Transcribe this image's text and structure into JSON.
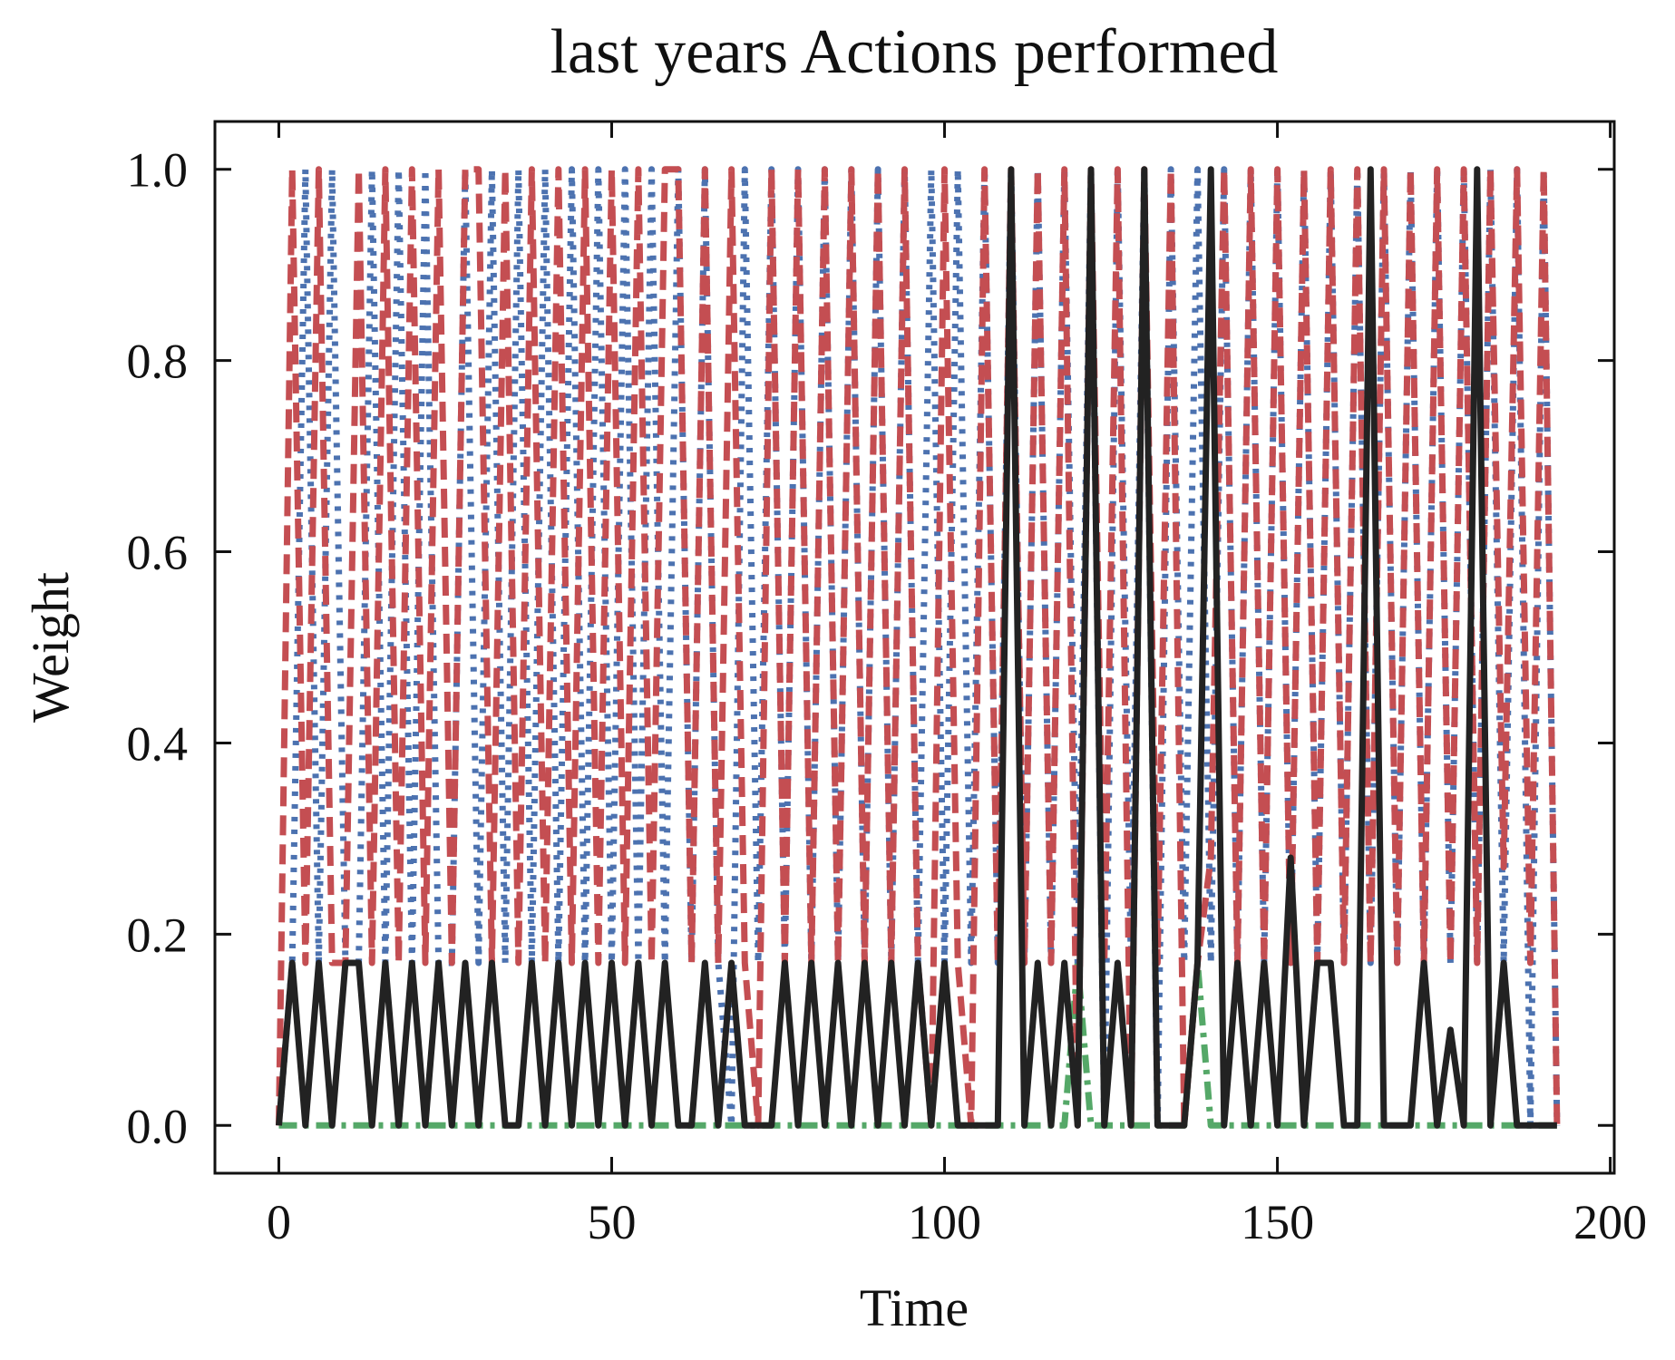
{
  "chart_data": {
    "type": "line",
    "title": "last years Actions performed",
    "xlabel": "Time",
    "ylabel": "Weight",
    "x": [
      0,
      2,
      4,
      6,
      8,
      10,
      12,
      14,
      16,
      18,
      20,
      22,
      24,
      26,
      28,
      30,
      32,
      34,
      36,
      38,
      40,
      42,
      44,
      46,
      48,
      50,
      52,
      54,
      56,
      58,
      60,
      62,
      64,
      66,
      68,
      70,
      72,
      74,
      76,
      78,
      80,
      82,
      84,
      86,
      88,
      90,
      92,
      94,
      96,
      98,
      100,
      102,
      104,
      106,
      108,
      110,
      112,
      114,
      116,
      118,
      120,
      122,
      124,
      126,
      128,
      130,
      132,
      134,
      136,
      138,
      140,
      142,
      144,
      146,
      148,
      150,
      152,
      154,
      156,
      158,
      160,
      162,
      164,
      166,
      168,
      170,
      172,
      174,
      176,
      178,
      180,
      182,
      184,
      186,
      188,
      190,
      192
    ],
    "series": [
      {
        "color": "#4c72b0",
        "dash": "dotted",
        "values": [
          0,
          0.17,
          1,
          0.17,
          1,
          0.17,
          0.17,
          1,
          0.17,
          1,
          0.17,
          1,
          0.17,
          0.17,
          1,
          0.17,
          1,
          0.17,
          1,
          0.17,
          1,
          0.17,
          1,
          0.17,
          1,
          0.17,
          1,
          0.17,
          1,
          0.17,
          1,
          0.17,
          1,
          0.17,
          0,
          1,
          0.17,
          1,
          0.17,
          1,
          0.17,
          1,
          0.17,
          1,
          0.17,
          1,
          0.17,
          1,
          0.17,
          1,
          0.17,
          1,
          0.17,
          1,
          0.17,
          1,
          0.17,
          1,
          0.17,
          1,
          0.17,
          1,
          0,
          1,
          0.17,
          1,
          0,
          1,
          0.17,
          1,
          0.17,
          1,
          0.17,
          1,
          0.17,
          1,
          0.17,
          1,
          0.17,
          1,
          0.17,
          1,
          0.17,
          1,
          0.17,
          1,
          0.17,
          1,
          0.17,
          1,
          0.17,
          1,
          0.17,
          1,
          0,
          1,
          0
        ]
      },
      {
        "color": "#55a868",
        "dash": "dashdot",
        "values": [
          0,
          0,
          0,
          0,
          0,
          0,
          0,
          0,
          0,
          0,
          0,
          0,
          0,
          0,
          0,
          0,
          0,
          0,
          0,
          0,
          0,
          0,
          0,
          0,
          0,
          0,
          0,
          0,
          0,
          0,
          0,
          0,
          0,
          0,
          0,
          0,
          0,
          0,
          0,
          0,
          0,
          0,
          0,
          0,
          0,
          0,
          0,
          0,
          0,
          0,
          0,
          0,
          0,
          0,
          0,
          0,
          0,
          0,
          0,
          0,
          0.17,
          0,
          0,
          0,
          0,
          0,
          0,
          0,
          0,
          0.17,
          0,
          0,
          0,
          0,
          0,
          0,
          0,
          0,
          0,
          0,
          0,
          0,
          0,
          0,
          0,
          0,
          0,
          0,
          0,
          0,
          0,
          0,
          0,
          0,
          0,
          0,
          0
        ]
      },
      {
        "color": "#c44e52",
        "dash": "dashed",
        "values": [
          0,
          1,
          0.17,
          1,
          0.17,
          0.17,
          1,
          0.17,
          1,
          0.17,
          1,
          0.17,
          1,
          0.17,
          1,
          1,
          0.17,
          1,
          0.17,
          1,
          0.17,
          1,
          0.17,
          1,
          0.17,
          1,
          0.17,
          1,
          0.17,
          1,
          1,
          0.17,
          1,
          0.17,
          1,
          0.17,
          0,
          1,
          0.17,
          1,
          0.17,
          1,
          0.17,
          1,
          0.17,
          1,
          0.17,
          1,
          0.17,
          0,
          1,
          0.17,
          0,
          1,
          0.17,
          1,
          0.17,
          1,
          0.17,
          1,
          0,
          1,
          0.17,
          1,
          0,
          1,
          0.17,
          1,
          0,
          0.17,
          0.28,
          1,
          0.17,
          1,
          0.17,
          1,
          0.17,
          1,
          0.17,
          1,
          0.17,
          1,
          0.17,
          1,
          0.17,
          1,
          0.17,
          1,
          0.17,
          1,
          0.17,
          1,
          0.27,
          1,
          0.17,
          1,
          0
        ]
      },
      {
        "color": "#222222",
        "dash": "solid",
        "values": [
          0,
          0.17,
          0,
          0.17,
          0,
          0.17,
          0.17,
          0,
          0.17,
          0,
          0.17,
          0,
          0.17,
          0,
          0.17,
          0,
          0.17,
          0,
          0,
          0.17,
          0,
          0.17,
          0,
          0.17,
          0,
          0.17,
          0,
          0.17,
          0,
          0.17,
          0,
          0,
          0.17,
          0,
          0.17,
          0,
          0,
          0,
          0.17,
          0,
          0.17,
          0,
          0.17,
          0,
          0.17,
          0,
          0.17,
          0,
          0.17,
          0,
          0.17,
          0,
          0,
          0,
          0,
          1,
          0,
          0.17,
          0,
          0.17,
          0,
          1,
          0,
          0.17,
          0,
          1,
          0,
          0,
          0,
          0.17,
          1,
          0,
          0.17,
          0,
          0.17,
          0,
          0.28,
          0,
          0.17,
          0.17,
          0,
          0,
          1,
          0,
          0,
          0,
          0.17,
          0,
          0.1,
          0,
          1,
          0,
          0.17,
          0,
          0,
          0,
          0
        ]
      }
    ],
    "xlim": [
      -9.6,
      200.6
    ],
    "ylim": [
      -0.05,
      1.05
    ],
    "xticks": [
      0,
      50,
      100,
      150,
      200
    ],
    "yticks": [
      {
        "value": 0,
        "label": "0.0"
      },
      {
        "value": 0.2,
        "label": "0.2"
      },
      {
        "value": 0.4,
        "label": "0.4"
      },
      {
        "value": 0.6,
        "label": "0.6"
      },
      {
        "value": 0.8,
        "label": "0.8"
      },
      {
        "value": 1,
        "label": "1.0"
      }
    ],
    "grid": false
  }
}
